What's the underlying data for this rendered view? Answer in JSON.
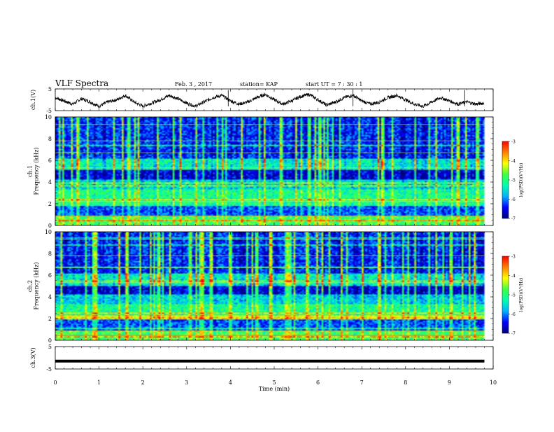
{
  "header": {
    "title": "VLF Spectra",
    "date": "Feb. 3 , 2017",
    "station": "station= KAP",
    "start": "start  UT =  7 : 30 : 1"
  },
  "chart_data": [
    {
      "type": "line",
      "name": "ch1-waveform",
      "ylabel": "ch.1(V)",
      "ylim": [
        -5,
        5
      ],
      "yticks": [
        5,
        -5
      ],
      "xlim": [
        0,
        10
      ],
      "x": [
        0,
        0.2,
        0.4,
        0.6,
        0.8,
        1.0,
        1.2,
        1.4,
        1.6,
        1.8,
        2.0,
        2.2,
        2.4,
        2.6,
        2.8,
        3.0,
        3.2,
        3.4,
        3.6,
        3.8,
        4.0,
        4.2,
        4.4,
        4.6,
        4.8,
        5.0,
        5.2,
        5.4,
        5.6,
        5.8,
        6.0,
        6.2,
        6.4,
        6.6,
        6.8,
        7.0,
        7.2,
        7.4,
        7.6,
        7.8,
        8.0,
        8.2,
        8.4,
        8.6,
        8.8,
        9.0,
        9.2,
        9.4,
        9.6,
        9.8
      ],
      "y": [
        1,
        -0.5,
        -2,
        0.5,
        -1,
        -3,
        -1,
        0,
        2,
        -1,
        -3,
        -1.5,
        0,
        2,
        0.5,
        -1.5,
        -3,
        -1,
        1,
        2,
        -0.5,
        -2,
        -1,
        1,
        2.5,
        0,
        -2,
        -0.5,
        1.5,
        2.5,
        0,
        -2.5,
        -1,
        1,
        2,
        -0.5,
        -2,
        -1,
        1,
        2,
        0,
        -2,
        -3,
        -1,
        1,
        -0.5,
        -2,
        -1,
        -2,
        -1.5
      ]
    },
    {
      "type": "heatmap",
      "name": "ch1-spectrogram",
      "ylabel": "ch.1\nFrequency (kHz)",
      "ylim": [
        0,
        10
      ],
      "yticks": [
        0,
        2,
        4,
        6,
        8,
        10
      ],
      "xlim": [
        0,
        10
      ],
      "data_end_min": 9.8,
      "colorbar": {
        "label": "log(PSD)(V²/Hz)",
        "range": [
          -7,
          -3
        ],
        "ticks": [
          -3,
          -4,
          -5,
          -6,
          -7
        ]
      }
    },
    {
      "type": "heatmap",
      "name": "ch2-spectrogram",
      "ylabel": "ch.2\nFrequency (kHz)",
      "ylim": [
        0,
        10
      ],
      "yticks": [
        0,
        2,
        4,
        6,
        8,
        10
      ],
      "xlim": [
        0,
        10
      ],
      "data_end_min": 9.8,
      "colorbar": {
        "label": "log(PSD)(V²/Hz)",
        "range": [
          -7,
          -3
        ],
        "ticks": [
          -3,
          -4,
          -5,
          -6,
          -7
        ]
      }
    },
    {
      "type": "line",
      "name": "ch3-waveform",
      "ylabel": "ch.3(V)",
      "ylim": [
        -5,
        5
      ],
      "yticks": [
        5,
        -5
      ],
      "xlim": [
        0,
        10
      ],
      "x": [
        0,
        9.8
      ],
      "y": [
        -1.5,
        -1.5
      ]
    }
  ],
  "xaxis": {
    "label": "Time (min)",
    "ticks": [
      0,
      1,
      2,
      3,
      4,
      5,
      6,
      7,
      8,
      9,
      10
    ]
  },
  "colors": {
    "colormap": [
      "#00007a",
      "#0000ff",
      "#00b0ff",
      "#00ffb0",
      "#40ff40",
      "#ffff00",
      "#ff8000",
      "#ff0000"
    ]
  }
}
